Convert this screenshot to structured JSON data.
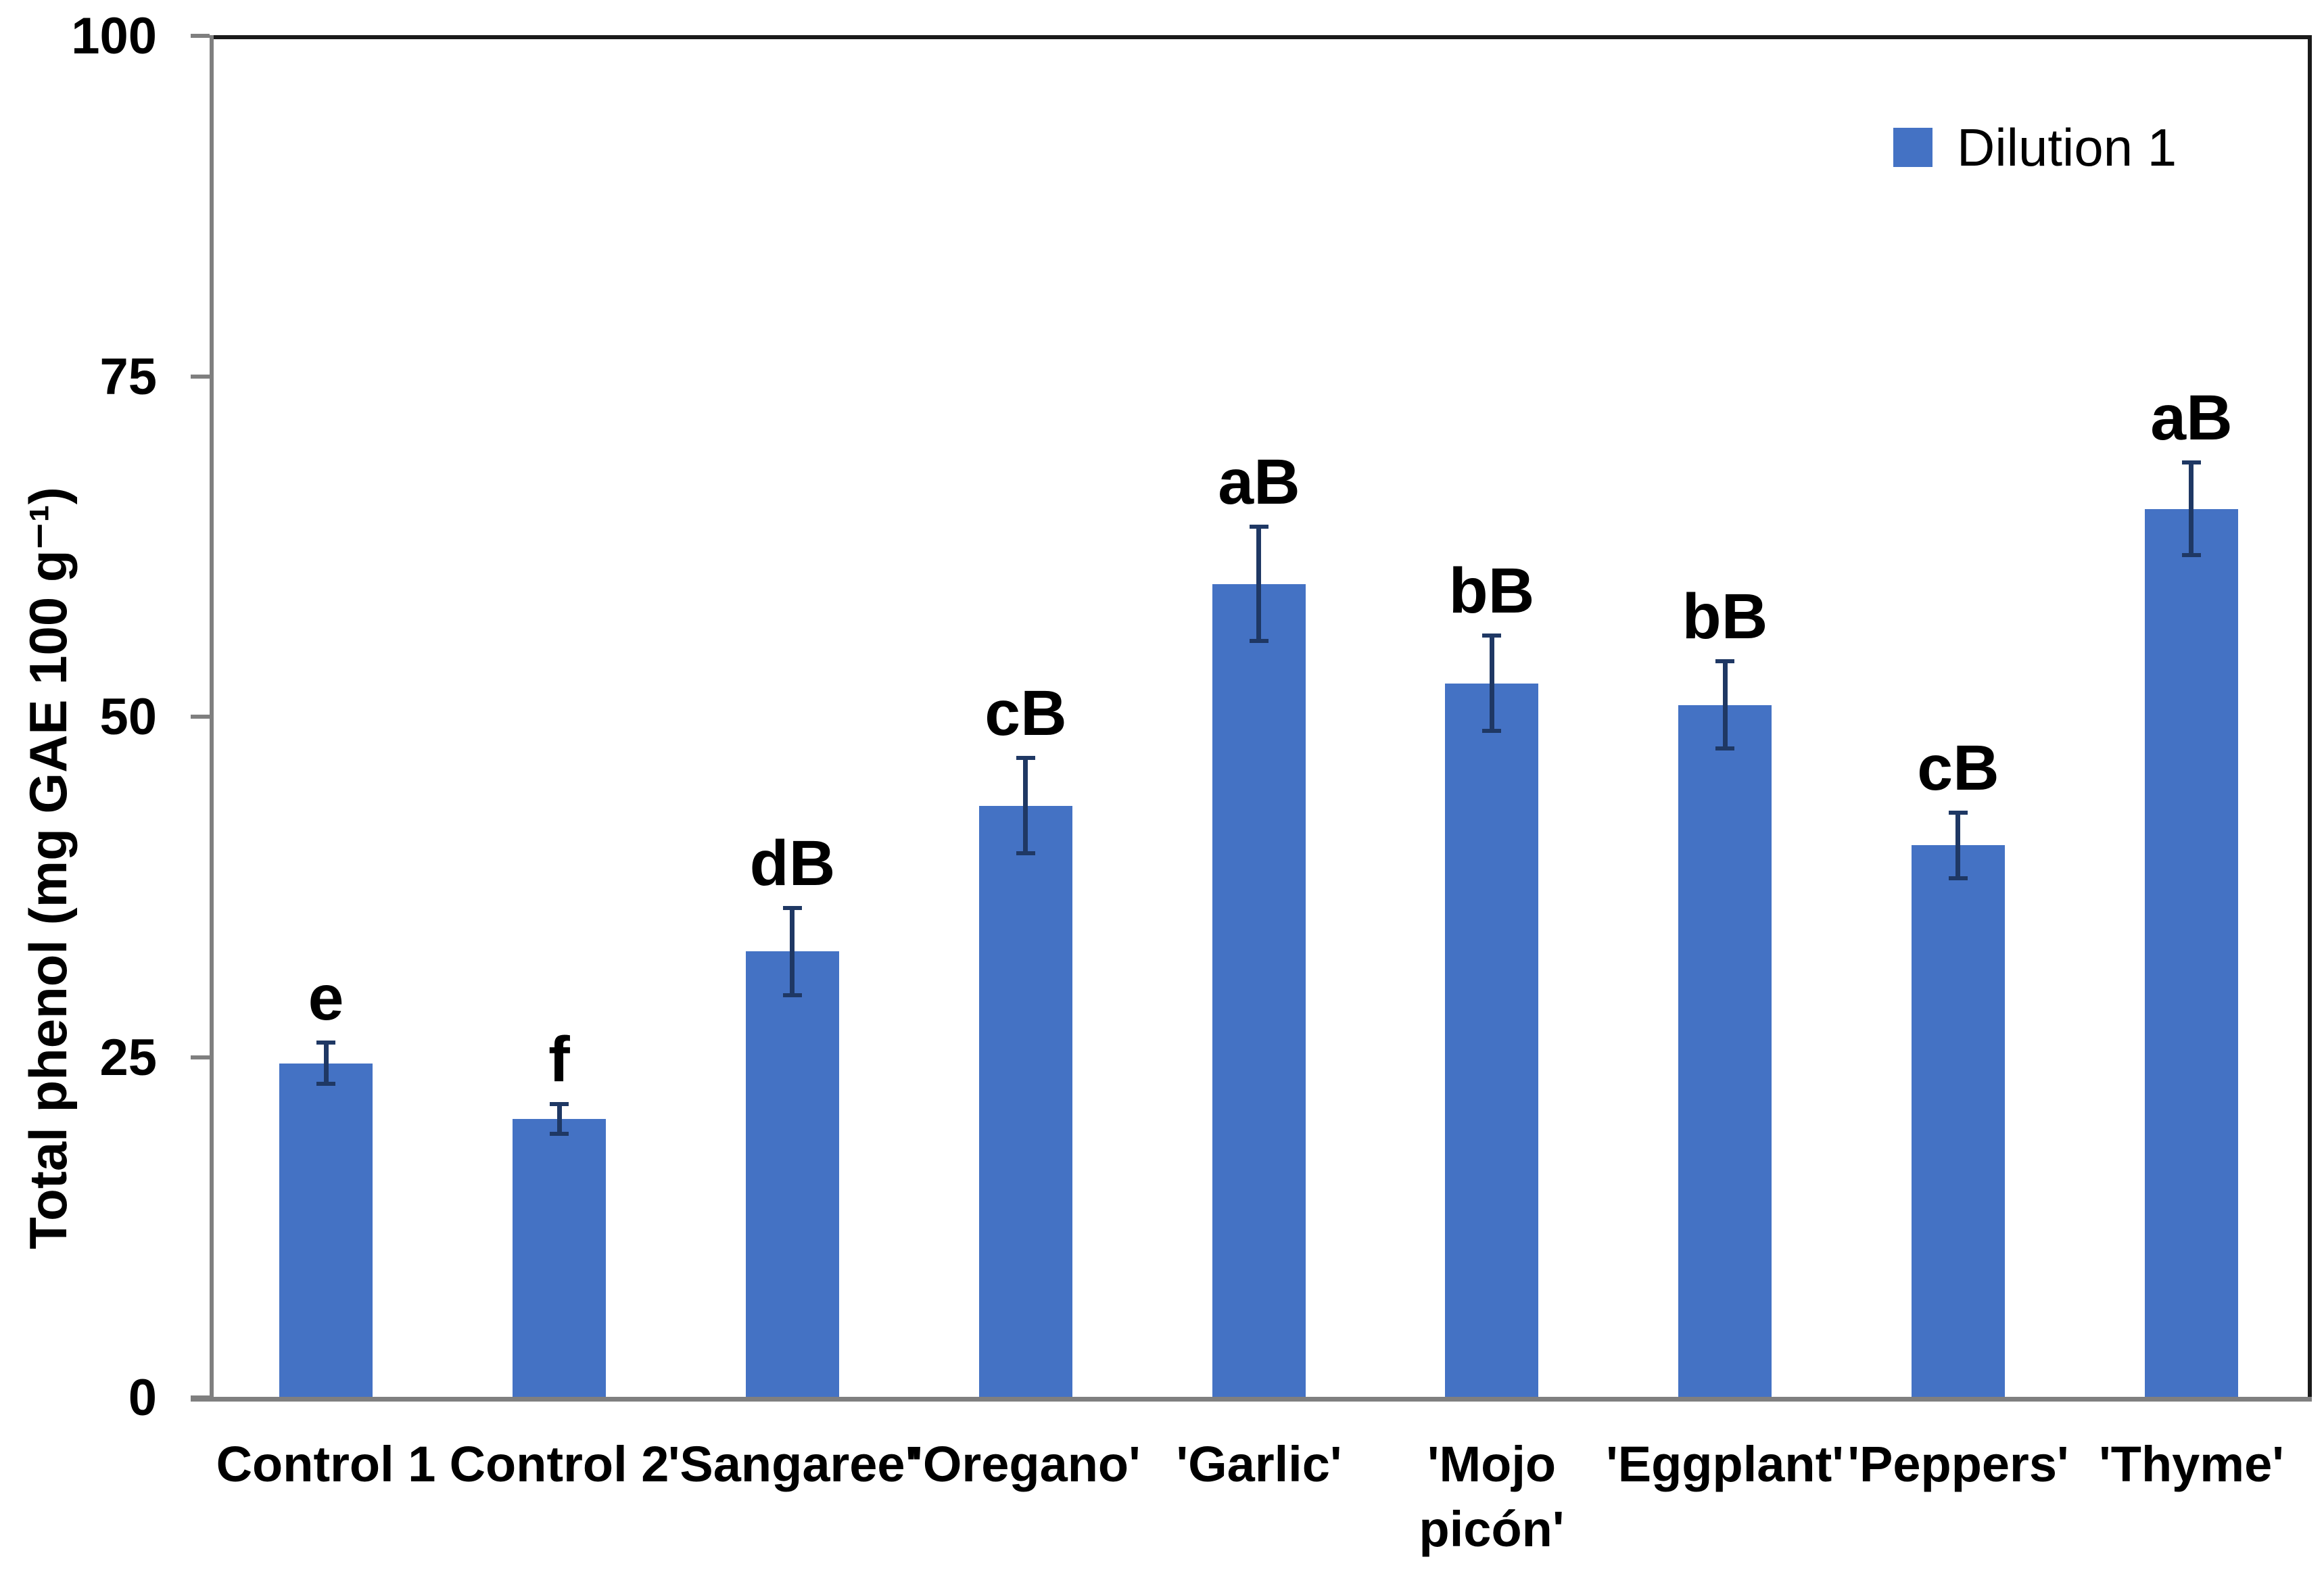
{
  "chart_data": {
    "type": "bar",
    "title": "",
    "xlabel": "",
    "ylabel": "Total phenol (mg GAE 100 g⁻¹)",
    "ylim": [
      0,
      100
    ],
    "yticks": [
      0,
      25,
      50,
      75,
      100
    ],
    "grid": false,
    "legend": {
      "position": "top-right-inside",
      "entries": [
        {
          "label": "Dilution 1",
          "color": "#4472C4"
        }
      ]
    },
    "categories": [
      "Control 1",
      "Control 2",
      "'Sangaree'",
      "'Oregano'",
      "'Garlic'",
      "'Mojo\npicón'",
      "'Eggplant'",
      "'Peppers'",
      "'Thyme'"
    ],
    "series": [
      {
        "name": "Dilution 1",
        "color": "#4472C4",
        "values": [
          24.5,
          20.4,
          32.7,
          43.4,
          59.7,
          52.4,
          50.8,
          40.5,
          65.2
        ],
        "error_bars": {
          "plus": [
            1.5,
            1.1,
            3.2,
            3.5,
            4.2,
            3.5,
            3.2,
            2.4,
            3.4
          ],
          "minus": [
            1.5,
            1.1,
            3.2,
            3.5,
            4.2,
            3.5,
            3.2,
            2.4,
            3.4
          ]
        },
        "significance_labels": [
          "e",
          "f",
          "dB",
          "cB",
          "aB",
          "bB",
          "bB",
          "cB",
          "aB"
        ]
      }
    ],
    "colors": {
      "bar": "#4472C4",
      "error_bar": "#1F3864",
      "axis_line": "#7f7f7f",
      "plot_border": "#1a1a1a",
      "text": "#000000",
      "background": "#ffffff"
    }
  }
}
